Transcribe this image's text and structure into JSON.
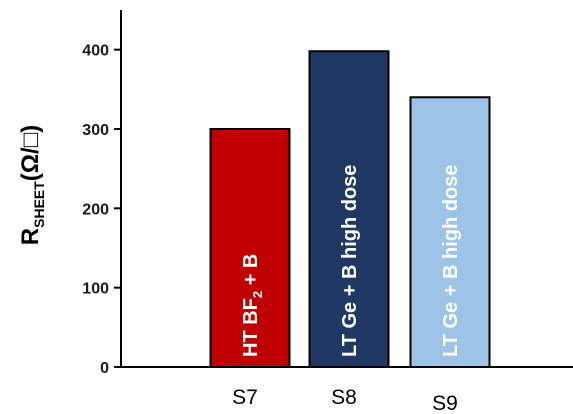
{
  "chart_data": {
    "type": "bar",
    "categories": [
      "S7",
      "S8",
      "S9"
    ],
    "values": [
      300,
      398,
      340
    ],
    "bar_labels": [
      {
        "main": "HT BF",
        "sub": "2",
        "rest": " + B"
      },
      {
        "main": "LT Ge + B high dose",
        "sub": "",
        "rest": ""
      },
      {
        "main": "LT Ge + B high dose",
        "sub": "",
        "rest": ""
      }
    ],
    "colors": [
      "#c00000",
      "#1f3864",
      "#9dc3e6"
    ],
    "ylabel": {
      "main": "R",
      "sub": "SHEET",
      "rest": "(Ω/□)"
    },
    "ylim": [
      0,
      450
    ],
    "yticks": [
      0,
      100,
      200,
      300,
      400
    ],
    "ytick_labels": [
      "0",
      "100",
      "200",
      "300",
      "400"
    ],
    "grid": false,
    "legend": "none"
  }
}
